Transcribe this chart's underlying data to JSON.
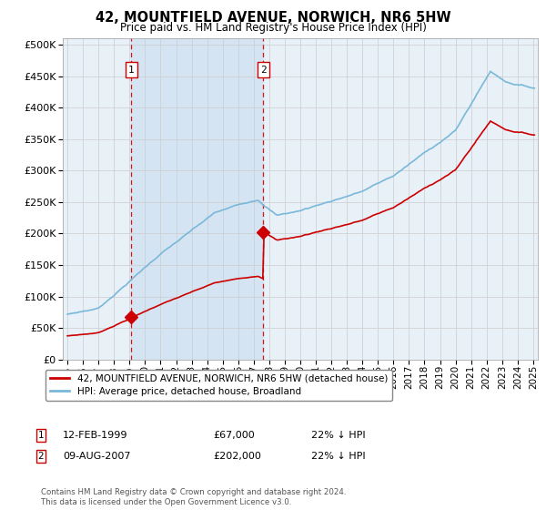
{
  "title": "42, MOUNTFIELD AVENUE, NORWICH, NR6 5HW",
  "subtitle": "Price paid vs. HM Land Registry's House Price Index (HPI)",
  "legend_line1": "42, MOUNTFIELD AVENUE, NORWICH, NR6 5HW (detached house)",
  "legend_line2": "HPI: Average price, detached house, Broadland",
  "footnote": "Contains HM Land Registry data © Crown copyright and database right 2024.\nThis data is licensed under the Open Government Licence v3.0.",
  "sale1_date": "12-FEB-1999",
  "sale1_price": 67000,
  "sale1_hpi": "22% ↓ HPI",
  "sale2_date": "09-AUG-2007",
  "sale2_price": 202000,
  "sale2_hpi": "22% ↓ HPI",
  "hpi_color": "#7ab8d9",
  "sale_color": "#cc0000",
  "plot_bg": "#e8f0f8",
  "shade_color": "#cde0f0",
  "grid_color": "#cccccc",
  "vline_color": "#cc0000",
  "ylim": [
    0,
    510000
  ],
  "yticks": [
    0,
    50000,
    100000,
    150000,
    200000,
    250000,
    300000,
    350000,
    400000,
    450000,
    500000
  ],
  "xlim": [
    1994.7,
    2025.3
  ],
  "xtick_start": 1995,
  "xtick_end": 2025
}
